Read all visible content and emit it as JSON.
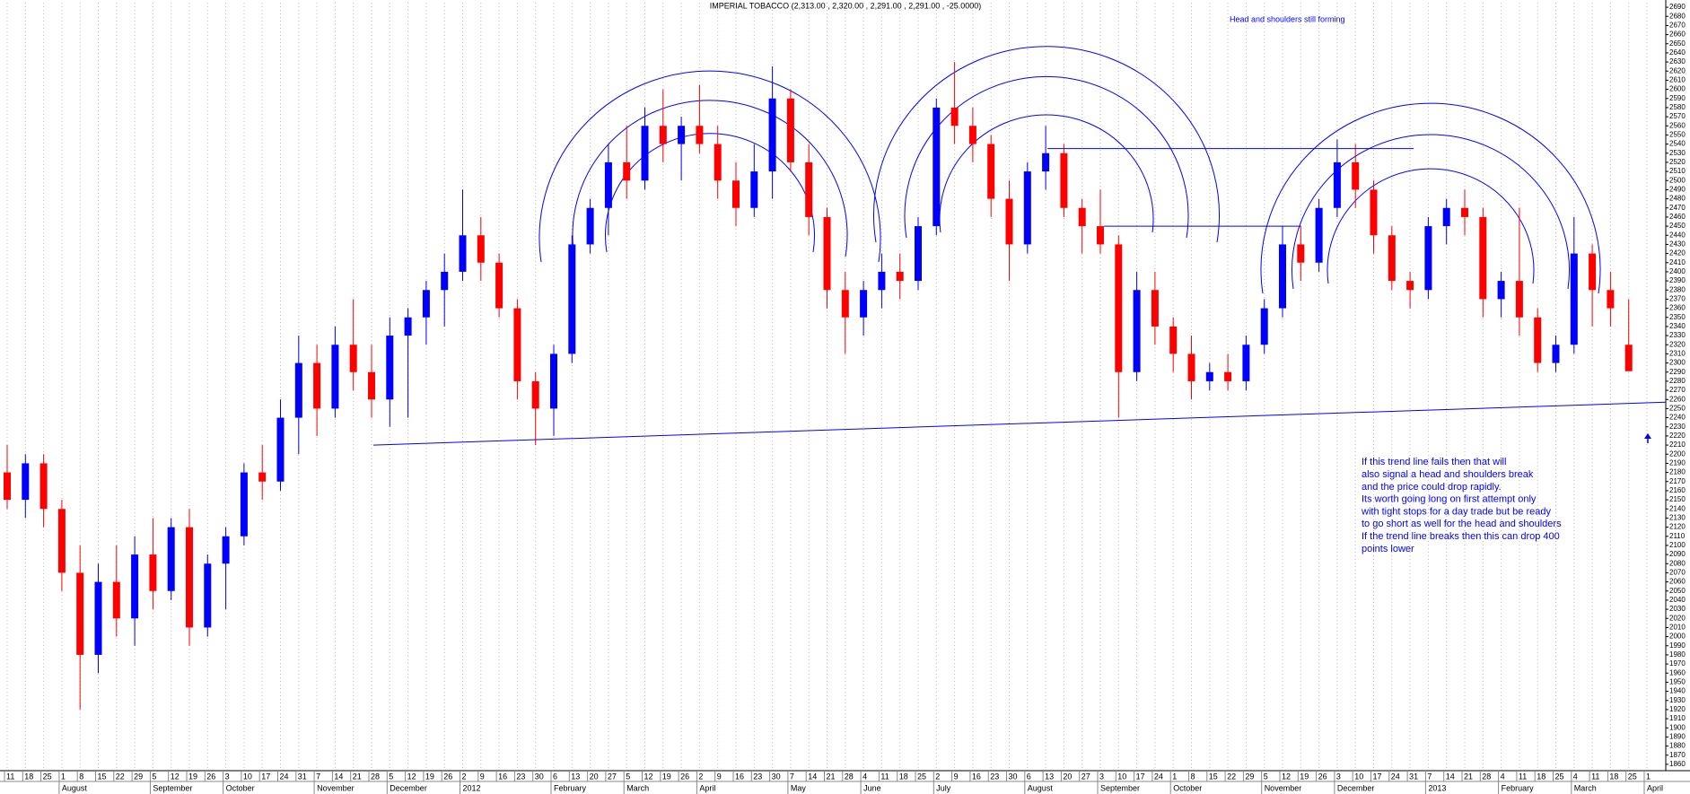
{
  "chart_data": {
    "type": "candlestick",
    "title": "IMPERIAL TOBACCO (2,313.00 , 2,320.00 , 2,291.00 , 2,291.00 , -25.0000)",
    "annotation": "Head and shoulders still forming",
    "notes": [
      "If this trend line fails then that will",
      "also signal a head and shoulders break",
      "and the price could drop rapidly.",
      "Its worth going long on first attempt only",
      "with tight stops for a day trade but be ready",
      "to go short as well for the head and shoulders",
      "If the trend line breaks then this can drop 400",
      "points lower"
    ],
    "categories": [
      11,
      18,
      25,
      1,
      8,
      15,
      22,
      29,
      5,
      12,
      19,
      26,
      3,
      10,
      17,
      24,
      31,
      7,
      14,
      21,
      28,
      5,
      12,
      19,
      26,
      2,
      9,
      16,
      23,
      30,
      6,
      13,
      20,
      27,
      5,
      12,
      19,
      26,
      2,
      9,
      16,
      23,
      30,
      7,
      14,
      21,
      28,
      4,
      11,
      18,
      25,
      2,
      9,
      16,
      23,
      30,
      6,
      13,
      20,
      27,
      3,
      10,
      17,
      24,
      1,
      8,
      15,
      22,
      29,
      5,
      12,
      19,
      26,
      3,
      10,
      17,
      24,
      31,
      7,
      14,
      21,
      28,
      4,
      11,
      18,
      25,
      4,
      11,
      18,
      25,
      1
    ],
    "months": [
      "August",
      "September",
      "October",
      "November",
      "December",
      "2012",
      "February",
      "March",
      "April",
      "May",
      "June",
      "July",
      "August",
      "September",
      "October",
      "November",
      "December",
      "2013",
      "February",
      "March",
      "April"
    ],
    "open": [
      2180,
      2150,
      2190,
      2140,
      2070,
      1980,
      2060,
      2020,
      2090,
      2050,
      2120,
      2010,
      2080,
      2110,
      2180,
      2170,
      2240,
      2300,
      2250,
      2320,
      2290,
      2260,
      2330,
      2350,
      2380,
      2400,
      2440,
      2410,
      2360,
      2280,
      2250,
      2310,
      2430,
      2470,
      2520,
      2500,
      2560,
      2540,
      2560,
      2540,
      2500,
      2470,
      2510,
      2590,
      2520,
      2460,
      2380,
      2350,
      2380,
      2400,
      2390,
      2450,
      2580,
      2560,
      2540,
      2480,
      2430,
      2510,
      2530,
      2470,
      2450,
      2430,
      2290,
      2380,
      2340,
      2310,
      2280,
      2290,
      2280,
      2320,
      2360,
      2430,
      2410,
      2470,
      2520,
      2490,
      2440,
      2390,
      2380,
      2450,
      2470,
      2460,
      2370,
      2390,
      2350,
      2300,
      2320,
      2420,
      2380,
      2320,
      null
    ],
    "high": [
      2210,
      2200,
      2200,
      2150,
      2100,
      2080,
      2100,
      2110,
      2130,
      2130,
      2140,
      2090,
      2120,
      2190,
      2210,
      2260,
      2330,
      2320,
      2340,
      2370,
      2320,
      2350,
      2360,
      2390,
      2420,
      2490,
      2460,
      2420,
      2370,
      2290,
      2320,
      2440,
      2480,
      2540,
      2560,
      2580,
      2600,
      2570,
      2605,
      2560,
      2520,
      2540,
      2625,
      2600,
      2540,
      2470,
      2400,
      2390,
      2420,
      2420,
      2460,
      2590,
      2630,
      2580,
      2550,
      2500,
      2520,
      2560,
      2540,
      2480,
      2490,
      2440,
      2400,
      2400,
      2350,
      2330,
      2300,
      2310,
      2330,
      2370,
      2450,
      2450,
      2480,
      2545,
      2540,
      2500,
      2450,
      2400,
      2460,
      2480,
      2490,
      2470,
      2400,
      2470,
      2360,
      2330,
      2460,
      2430,
      2400,
      2370,
      null
    ],
    "low": [
      2140,
      2130,
      2120,
      2050,
      1920,
      1960,
      2000,
      1990,
      2030,
      2040,
      1990,
      2000,
      2030,
      2100,
      2150,
      2160,
      2200,
      2220,
      2240,
      2270,
      2240,
      2230,
      2240,
      2320,
      2340,
      2390,
      2390,
      2350,
      2260,
      2210,
      2220,
      2300,
      2420,
      2440,
      2480,
      2490,
      2520,
      2500,
      2530,
      2480,
      2450,
      2460,
      2480,
      2510,
      2440,
      2360,
      2310,
      2330,
      2360,
      2370,
      2380,
      2440,
      2540,
      2520,
      2460,
      2390,
      2420,
      2490,
      2460,
      2420,
      2420,
      2240,
      2280,
      2320,
      2290,
      2260,
      2270,
      2270,
      2270,
      2310,
      2350,
      2390,
      2400,
      2460,
      2470,
      2420,
      2380,
      2360,
      2370,
      2430,
      2440,
      2350,
      2350,
      2330,
      2290,
      2290,
      2310,
      2340,
      2340,
      2291,
      null
    ],
    "close": [
      2150,
      2190,
      2140,
      2070,
      1980,
      2060,
      2020,
      2090,
      2050,
      2120,
      2010,
      2080,
      2110,
      2180,
      2170,
      2240,
      2300,
      2250,
      2320,
      2290,
      2260,
      2330,
      2350,
      2380,
      2400,
      2440,
      2410,
      2360,
      2280,
      2250,
      2310,
      2430,
      2470,
      2520,
      2500,
      2560,
      2540,
      2560,
      2540,
      2500,
      2470,
      2510,
      2590,
      2520,
      2460,
      2380,
      2350,
      2380,
      2400,
      2390,
      2450,
      2580,
      2560,
      2540,
      2480,
      2430,
      2510,
      2530,
      2470,
      2450,
      2430,
      2290,
      2380,
      2340,
      2310,
      2280,
      2290,
      2280,
      2320,
      2360,
      2430,
      2410,
      2470,
      2520,
      2490,
      2440,
      2390,
      2380,
      2450,
      2470,
      2460,
      2370,
      2390,
      2350,
      2300,
      2320,
      2420,
      2380,
      2360,
      2291,
      null
    ],
    "up_color": "#0000ff",
    "down_color": "#ff0000",
    "line_color": "#0000ff",
    "trend_lines": [
      {
        "x": [
          20.1,
          91.5
        ],
        "y": [
          2210,
          2257
        ]
      },
      {
        "x": [
          57.1,
          77.2
        ],
        "y": [
          2535,
          2535
        ]
      },
      {
        "x": [
          60.2,
          71
        ],
        "y": [
          2450,
          2450
        ]
      }
    ],
    "ylim": [
      1855,
      2695
    ],
    "yticks": [
      1860,
      1870,
      1880,
      1890,
      1900,
      1910,
      1920,
      1930,
      1940,
      1950,
      1960,
      1970,
      1980,
      1990,
      2000,
      2010,
      2020,
      2030,
      2040,
      2050,
      2060,
      2070,
      2080,
      2090,
      2100,
      2110,
      2120,
      2130,
      2140,
      2150,
      2160,
      2170,
      2180,
      2190,
      2200,
      2210,
      2220,
      2230,
      2240,
      2250,
      2260,
      2270,
      2280,
      2290,
      2300,
      2310,
      2320,
      2330,
      2340,
      2350,
      2360,
      2370,
      2380,
      2390,
      2400,
      2410,
      2420,
      2430,
      2440,
      2450,
      2460,
      2470,
      2480,
      2490,
      2500,
      2510,
      2520,
      2530,
      2540,
      2550,
      2560,
      2570,
      2580,
      2590,
      2600,
      2610,
      2620,
      2630,
      2640,
      2650,
      2660,
      2670,
      2680,
      2690
    ],
    "grid": true
  }
}
